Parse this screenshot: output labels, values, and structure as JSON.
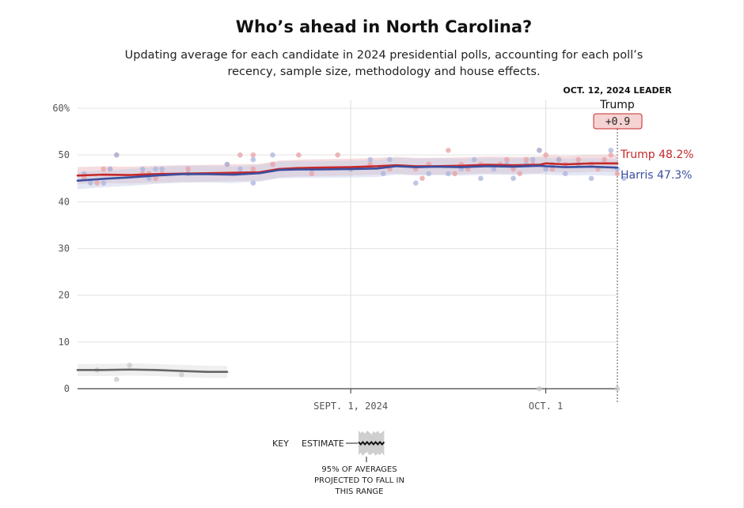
{
  "chart_data": {
    "type": "line",
    "title": "Who’s ahead in North Carolina?",
    "subtitle": "Updating average for each candidate in 2024 presidential polls, accounting for each poll’s recency, sample size, methodology and house effects.",
    "xlim": [
      "2024-07-21",
      "2024-10-12"
    ],
    "ylim": [
      0,
      60
    ],
    "y_ticks": [
      {
        "value": 60,
        "label": "60%"
      },
      {
        "value": 50,
        "label": "50"
      },
      {
        "value": 40,
        "label": "40"
      },
      {
        "value": 30,
        "label": "30"
      },
      {
        "value": 20,
        "label": "20"
      },
      {
        "value": 10,
        "label": "10"
      },
      {
        "value": 0,
        "label": "0"
      }
    ],
    "x_ticks": [
      {
        "date": "2024-09-01",
        "label": "SEPT. 1, 2024"
      },
      {
        "date": "2024-10-01",
        "label": "OCT. 1"
      }
    ],
    "grid": {
      "horizontal": true,
      "vertical": true
    },
    "leader": {
      "header": "OCT. 12, 2024 LEADER",
      "name": "Trump",
      "margin": "+0.9",
      "date": "2024-10-12"
    },
    "series": [
      {
        "name": "Trump",
        "end_label": "Trump 48.2%",
        "color": "#c62828",
        "band_color": "#e8b4b8",
        "x": [
          "2024-07-21",
          "2024-07-25",
          "2024-07-29",
          "2024-08-02",
          "2024-08-06",
          "2024-08-10",
          "2024-08-14",
          "2024-08-18",
          "2024-08-21",
          "2024-08-24",
          "2024-08-27",
          "2024-09-01",
          "2024-09-05",
          "2024-09-08",
          "2024-09-11",
          "2024-09-14",
          "2024-09-18",
          "2024-09-22",
          "2024-09-26",
          "2024-09-30",
          "2024-10-01",
          "2024-10-04",
          "2024-10-08",
          "2024-10-12"
        ],
        "values": [
          45.6,
          45.8,
          45.7,
          45.9,
          46.0,
          46.1,
          46.2,
          46.3,
          47.0,
          47.2,
          47.3,
          47.4,
          47.6,
          47.8,
          47.6,
          47.6,
          47.7,
          47.9,
          47.8,
          47.9,
          48.2,
          48.0,
          48.2,
          48.2
        ],
        "band_width": 1.8
      },
      {
        "name": "Harris",
        "end_label": "Harris 47.3%",
        "color": "#3b4fa0",
        "band_color": "#c3cbe6",
        "x": [
          "2024-07-21",
          "2024-07-25",
          "2024-07-29",
          "2024-08-02",
          "2024-08-06",
          "2024-08-10",
          "2024-08-14",
          "2024-08-18",
          "2024-08-21",
          "2024-08-24",
          "2024-08-27",
          "2024-09-01",
          "2024-09-05",
          "2024-09-08",
          "2024-09-11",
          "2024-09-14",
          "2024-09-18",
          "2024-09-22",
          "2024-09-26",
          "2024-09-30",
          "2024-10-01",
          "2024-10-04",
          "2024-10-08",
          "2024-10-12"
        ],
        "values": [
          44.5,
          44.9,
          45.2,
          45.6,
          45.9,
          45.9,
          45.8,
          46.1,
          46.8,
          46.9,
          46.9,
          47.0,
          47.1,
          47.6,
          47.4,
          47.5,
          47.4,
          47.6,
          47.5,
          47.7,
          47.6,
          47.4,
          47.5,
          47.3
        ],
        "band_width": 1.8
      },
      {
        "name": "",
        "color": "#666666",
        "band_color": "#dcdcdc",
        "x": [
          "2024-07-21",
          "2024-07-25",
          "2024-07-29",
          "2024-08-02",
          "2024-08-06",
          "2024-08-10",
          "2024-08-13"
        ],
        "values": [
          4.0,
          4.0,
          4.1,
          4.0,
          3.8,
          3.6,
          3.6
        ],
        "band_width": 1.3
      }
    ],
    "polls": {
      "Trump": [
        {
          "x": "2024-07-22",
          "y": 45
        },
        {
          "x": "2024-07-24",
          "y": 44
        },
        {
          "x": "2024-07-25",
          "y": 47
        },
        {
          "x": "2024-07-26",
          "y": 47
        },
        {
          "x": "2024-07-27",
          "y": 50
        },
        {
          "x": "2024-07-31",
          "y": 46
        },
        {
          "x": "2024-08-01",
          "y": 46
        },
        {
          "x": "2024-08-02",
          "y": 45
        },
        {
          "x": "2024-08-03",
          "y": 46
        },
        {
          "x": "2024-08-07",
          "y": 47
        },
        {
          "x": "2024-08-13",
          "y": 48
        },
        {
          "x": "2024-08-15",
          "y": 50
        },
        {
          "x": "2024-08-17",
          "y": 50
        },
        {
          "x": "2024-08-17",
          "y": 47
        },
        {
          "x": "2024-08-20",
          "y": 48
        },
        {
          "x": "2024-08-24",
          "y": 50
        },
        {
          "x": "2024-08-26",
          "y": 46
        },
        {
          "x": "2024-08-30",
          "y": 50
        },
        {
          "x": "2024-09-01",
          "y": 47
        },
        {
          "x": "2024-09-04",
          "y": 48
        },
        {
          "x": "2024-09-07",
          "y": 47
        },
        {
          "x": "2024-09-11",
          "y": 47
        },
        {
          "x": "2024-09-12",
          "y": 45
        },
        {
          "x": "2024-09-13",
          "y": 48
        },
        {
          "x": "2024-09-16",
          "y": 51
        },
        {
          "x": "2024-09-17",
          "y": 46
        },
        {
          "x": "2024-09-18",
          "y": 48
        },
        {
          "x": "2024-09-19",
          "y": 47
        },
        {
          "x": "2024-09-21",
          "y": 48
        },
        {
          "x": "2024-09-24",
          "y": 48
        },
        {
          "x": "2024-09-25",
          "y": 49
        },
        {
          "x": "2024-09-26",
          "y": 47
        },
        {
          "x": "2024-09-27",
          "y": 46
        },
        {
          "x": "2024-09-28",
          "y": 49
        },
        {
          "x": "2024-09-29",
          "y": 48
        },
        {
          "x": "2024-09-30",
          "y": 51
        },
        {
          "x": "2024-10-01",
          "y": 50
        },
        {
          "x": "2024-10-02",
          "y": 47
        },
        {
          "x": "2024-10-03",
          "y": 49
        },
        {
          "x": "2024-10-04",
          "y": 48
        },
        {
          "x": "2024-10-06",
          "y": 49
        },
        {
          "x": "2024-10-08",
          "y": 48
        },
        {
          "x": "2024-10-09",
          "y": 47
        },
        {
          "x": "2024-10-10",
          "y": 49
        },
        {
          "x": "2024-10-11",
          "y": 50
        },
        {
          "x": "2024-10-12",
          "y": 46
        }
      ],
      "Harris": [
        {
          "x": "2024-07-22",
          "y": 46
        },
        {
          "x": "2024-07-23",
          "y": 44
        },
        {
          "x": "2024-07-25",
          "y": 44
        },
        {
          "x": "2024-07-26",
          "y": 47
        },
        {
          "x": "2024-07-27",
          "y": 50
        },
        {
          "x": "2024-07-31",
          "y": 47
        },
        {
          "x": "2024-08-01",
          "y": 45
        },
        {
          "x": "2024-08-02",
          "y": 47
        },
        {
          "x": "2024-08-03",
          "y": 47
        },
        {
          "x": "2024-08-07",
          "y": 46
        },
        {
          "x": "2024-08-13",
          "y": 48
        },
        {
          "x": "2024-08-15",
          "y": 47
        },
        {
          "x": "2024-08-17",
          "y": 44
        },
        {
          "x": "2024-08-17",
          "y": 49
        },
        {
          "x": "2024-08-20",
          "y": 50
        },
        {
          "x": "2024-08-26",
          "y": 47
        },
        {
          "x": "2024-09-01",
          "y": 47
        },
        {
          "x": "2024-09-04",
          "y": 49
        },
        {
          "x": "2024-09-06",
          "y": 46
        },
        {
          "x": "2024-09-07",
          "y": 49
        },
        {
          "x": "2024-09-11",
          "y": 44
        },
        {
          "x": "2024-09-13",
          "y": 46
        },
        {
          "x": "2024-09-16",
          "y": 46
        },
        {
          "x": "2024-09-18",
          "y": 47
        },
        {
          "x": "2024-09-20",
          "y": 49
        },
        {
          "x": "2024-09-21",
          "y": 45
        },
        {
          "x": "2024-09-23",
          "y": 47
        },
        {
          "x": "2024-09-25",
          "y": 48
        },
        {
          "x": "2024-09-26",
          "y": 45
        },
        {
          "x": "2024-09-28",
          "y": 48
        },
        {
          "x": "2024-09-29",
          "y": 49
        },
        {
          "x": "2024-09-30",
          "y": 51
        },
        {
          "x": "2024-10-01",
          "y": 47
        },
        {
          "x": "2024-10-02",
          "y": 48
        },
        {
          "x": "2024-10-03",
          "y": 49
        },
        {
          "x": "2024-10-04",
          "y": 46
        },
        {
          "x": "2024-10-06",
          "y": 48
        },
        {
          "x": "2024-10-08",
          "y": 45
        },
        {
          "x": "2024-10-11",
          "y": 51
        },
        {
          "x": "2024-10-12",
          "y": 47
        },
        {
          "x": "2024-10-13",
          "y": 45
        }
      ],
      "Other": [
        {
          "x": "2024-07-24",
          "y": 4
        },
        {
          "x": "2024-07-27",
          "y": 2
        },
        {
          "x": "2024-07-29",
          "y": 5
        },
        {
          "x": "2024-08-06",
          "y": 3
        },
        {
          "x": "2024-09-30",
          "y": 0
        },
        {
          "x": "2024-10-12",
          "y": 0
        }
      ]
    },
    "key": {
      "label": "KEY",
      "estimate": "ESTIMATE",
      "note": [
        "95% OF AVERAGES",
        "PROJECTED TO FALL IN",
        "THIS RANGE"
      ]
    }
  }
}
